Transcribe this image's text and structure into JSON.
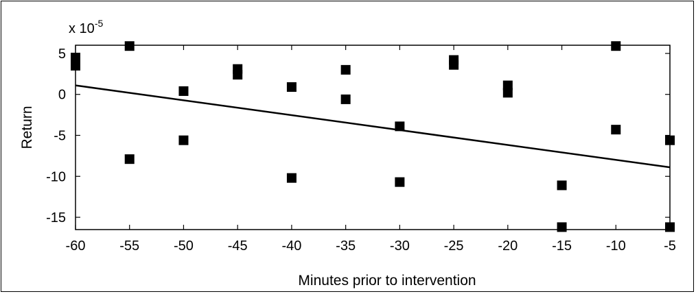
{
  "chart_data": {
    "type": "scatter",
    "title": "",
    "xlabel": "Minutes prior to intervention",
    "ylabel": "Return",
    "y_multiplier": "x 10",
    "y_multiplier_exponent": "-5",
    "xlim": [
      -60,
      -5
    ],
    "ylim": [
      -16.5,
      6
    ],
    "grid": false,
    "legend": "none",
    "x_ticks": [
      -60,
      -55,
      -50,
      -45,
      -40,
      -35,
      -30,
      -25,
      -20,
      -15,
      -10,
      -5
    ],
    "x_tick_labels": [
      "-60",
      "-55",
      "-50",
      "-45",
      "-40",
      "-35",
      "-30",
      "-25",
      "-20",
      "-15",
      "-10",
      "-5"
    ],
    "y_ticks": [
      5,
      0,
      -5,
      -10,
      -15
    ],
    "y_tick_labels": [
      "5",
      "0",
      "-5",
      "-10",
      "-15"
    ],
    "series": [
      {
        "marker": "square",
        "color": "#000000",
        "points": [
          {
            "x": -60,
            "y": 4.5
          },
          {
            "x": -60,
            "y": 3.5
          },
          {
            "x": -55,
            "y": 5.9
          },
          {
            "x": -55,
            "y": -7.9
          },
          {
            "x": -50,
            "y": 0.4
          },
          {
            "x": -50,
            "y": -5.6
          },
          {
            "x": -45,
            "y": 3.1
          },
          {
            "x": -45,
            "y": 2.4
          },
          {
            "x": -40,
            "y": 0.9
          },
          {
            "x": -40,
            "y": -10.2
          },
          {
            "x": -35,
            "y": 3.0
          },
          {
            "x": -35,
            "y": -0.6
          },
          {
            "x": -30,
            "y": -3.9
          },
          {
            "x": -30,
            "y": -10.7
          },
          {
            "x": -25,
            "y": 4.2
          },
          {
            "x": -25,
            "y": 3.6
          },
          {
            "x": -20,
            "y": 1.1
          },
          {
            "x": -20,
            "y": 0.2
          },
          {
            "x": -15,
            "y": -11.1
          },
          {
            "x": -15,
            "y": -16.2
          },
          {
            "x": -10,
            "y": 5.9
          },
          {
            "x": -10,
            "y": -4.3
          },
          {
            "x": -5,
            "y": -5.6
          },
          {
            "x": -5,
            "y": -16.2
          }
        ]
      }
    ],
    "fit_line": {
      "color": "#000000",
      "points": [
        {
          "x": -60,
          "y": 1.1
        },
        {
          "x": -5,
          "y": -8.9
        }
      ]
    }
  }
}
